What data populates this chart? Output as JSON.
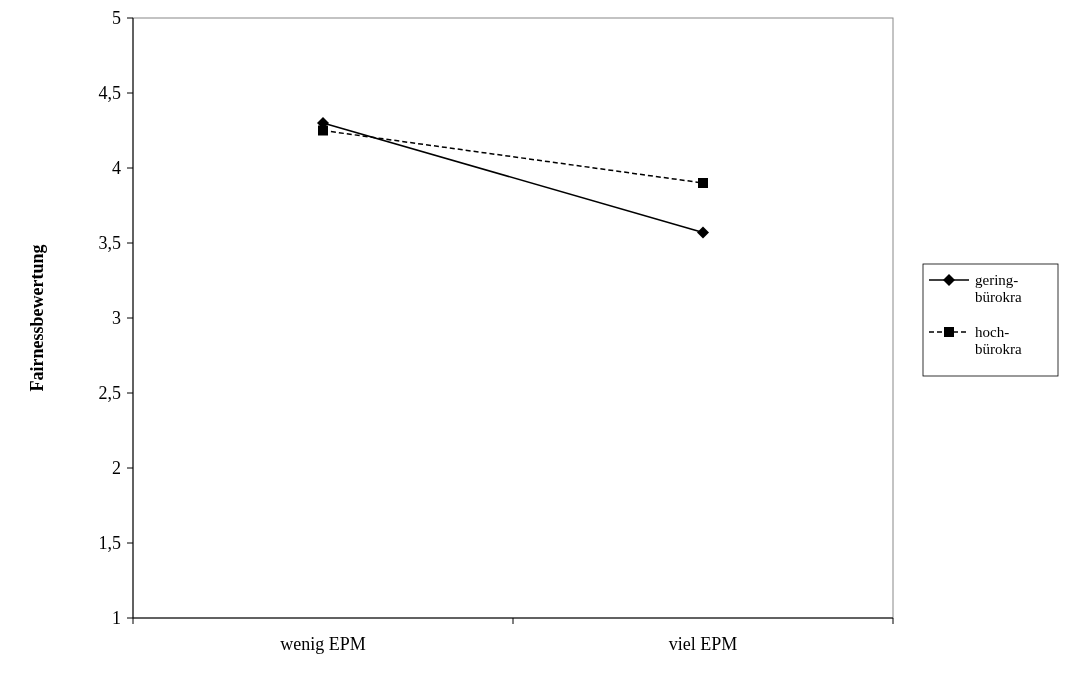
{
  "chart_data": {
    "type": "line",
    "ylabel": "Fairnessbewertung",
    "categories": [
      "wenig EPM",
      "viel EPM"
    ],
    "series": [
      {
        "name": "gering-bürokra",
        "color": "#000000",
        "values": [
          4.3,
          3.57
        ],
        "marker": "diamond",
        "line_style": "solid"
      },
      {
        "name": "hoch-bürokra",
        "color": "#000000",
        "values": [
          4.25,
          3.9
        ],
        "marker": "square",
        "line_style": "dashed"
      }
    ],
    "ylim": [
      1,
      5
    ],
    "yticks": [
      1,
      {
        "value": 1.5,
        "label": "1,5"
      },
      2,
      {
        "value": 2.5,
        "label": "2,5"
      },
      3,
      {
        "value": 3.5,
        "label": "3,5"
      },
      4,
      {
        "value": 4.5,
        "label": "4,5"
      },
      5
    ],
    "grid": false,
    "legend": "right"
  }
}
